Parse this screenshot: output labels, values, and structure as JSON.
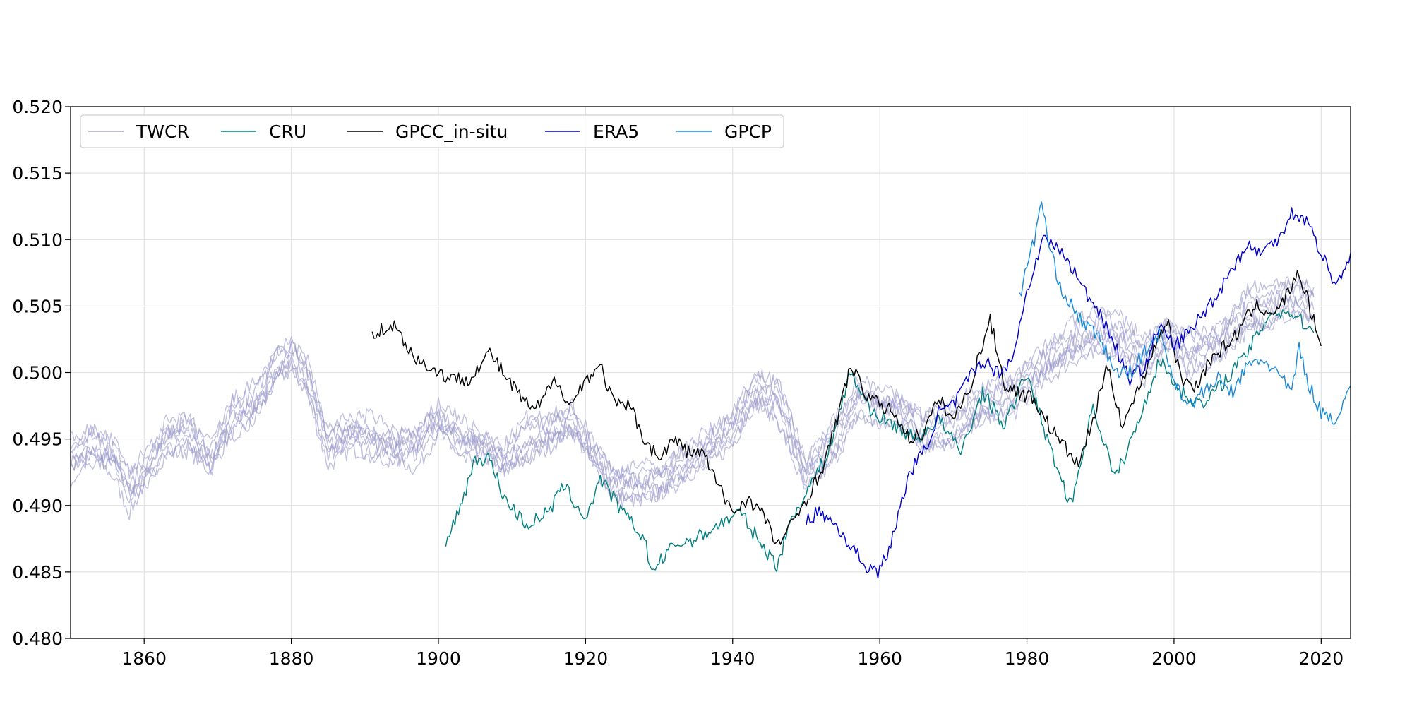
{
  "chart_data": {
    "type": "line",
    "title": "",
    "xlabel": "",
    "ylabel": "",
    "xlim": [
      1850,
      2024
    ],
    "ylim": [
      0.48,
      0.52
    ],
    "xticks": [
      1860,
      1880,
      1900,
      1920,
      1940,
      1960,
      1980,
      2000,
      2020
    ],
    "yticks": [
      0.48,
      0.485,
      0.49,
      0.495,
      0.5,
      0.505,
      0.51,
      0.515,
      0.52
    ],
    "xtick_labels": [
      "1860",
      "1880",
      "1900",
      "1920",
      "1940",
      "1960",
      "1980",
      "2000",
      "2020"
    ],
    "ytick_labels": [
      "0.480",
      "0.485",
      "0.490",
      "0.495",
      "0.500",
      "0.505",
      "0.510",
      "0.515",
      "0.520"
    ],
    "grid": true,
    "legend_position": "top-left",
    "legend": [
      {
        "label": "TWCR",
        "color": "#aaaacc"
      },
      {
        "label": "CRU",
        "color": "#008080"
      },
      {
        "label": "GPCC_in-situ",
        "color": "#000000"
      },
      {
        "label": "ERA5",
        "color": "#0000cc"
      },
      {
        "label": "GPCP",
        "color": "#1a8ad8"
      }
    ],
    "series": [
      {
        "name": "TWCR",
        "color": "#9999cc",
        "opacity": 0.7,
        "ensemble_members": 8,
        "x": [
          1850,
          1853,
          1856,
          1858,
          1860,
          1863,
          1866,
          1869,
          1872,
          1875,
          1878,
          1880,
          1882,
          1885,
          1888,
          1891,
          1894,
          1897,
          1900,
          1903,
          1906,
          1909,
          1912,
          1915,
          1918,
          1921,
          1924,
          1927,
          1930,
          1933,
          1936,
          1940,
          1943,
          1946,
          1950,
          1954,
          1957,
          1960,
          1963,
          1966,
          1970,
          1974,
          1978,
          1982,
          1986,
          1990,
          1993,
          1996,
          1999,
          2002,
          2006,
          2010,
          2013,
          2016,
          2019
        ],
        "y": [
          0.4935,
          0.4945,
          0.4935,
          0.491,
          0.4925,
          0.495,
          0.4955,
          0.4935,
          0.4965,
          0.4975,
          0.5005,
          0.5012,
          0.4995,
          0.4945,
          0.4955,
          0.495,
          0.4945,
          0.4945,
          0.4965,
          0.495,
          0.4945,
          0.4935,
          0.495,
          0.4955,
          0.4965,
          0.494,
          0.4915,
          0.4915,
          0.4915,
          0.493,
          0.494,
          0.496,
          0.4985,
          0.498,
          0.4925,
          0.495,
          0.498,
          0.4975,
          0.497,
          0.4955,
          0.496,
          0.4975,
          0.4985,
          0.5005,
          0.502,
          0.503,
          0.5025,
          0.501,
          0.503,
          0.5015,
          0.5025,
          0.5045,
          0.505,
          0.5055,
          0.505
        ]
      },
      {
        "name": "CRU",
        "color": "#008080",
        "opacity": 1,
        "x": [
          1901,
          1903,
          1905,
          1907,
          1909,
          1912,
          1915,
          1917,
          1920,
          1922,
          1925,
          1928,
          1929,
          1932,
          1935,
          1938,
          1941,
          1944,
          1946,
          1948,
          1950,
          1953,
          1956,
          1959,
          1962,
          1965,
          1968,
          1971,
          1974,
          1977,
          1980,
          1983,
          1986,
          1989,
          1992,
          1995,
          1998,
          2001,
          2004,
          2007,
          2010,
          2013,
          2016,
          2019
        ],
        "y": [
          0.487,
          0.49,
          0.4935,
          0.4935,
          0.4905,
          0.4885,
          0.4895,
          0.4915,
          0.489,
          0.492,
          0.4895,
          0.4875,
          0.485,
          0.487,
          0.4875,
          0.4885,
          0.4895,
          0.487,
          0.4855,
          0.489,
          0.491,
          0.494,
          0.5,
          0.497,
          0.496,
          0.495,
          0.4965,
          0.494,
          0.4985,
          0.496,
          0.5,
          0.4945,
          0.49,
          0.4975,
          0.492,
          0.496,
          0.501,
          0.4985,
          0.4975,
          0.4995,
          0.5015,
          0.5045,
          0.5045,
          0.503
        ]
      },
      {
        "name": "GPCC_in-situ",
        "color": "#000000",
        "opacity": 1,
        "x": [
          1891,
          1894,
          1897,
          1900,
          1902,
          1904,
          1907,
          1910,
          1913,
          1916,
          1918,
          1920,
          1922,
          1924,
          1926,
          1928,
          1930,
          1932,
          1934,
          1936,
          1938,
          1940,
          1942,
          1944,
          1946,
          1948,
          1950,
          1952,
          1954,
          1956,
          1958,
          1960,
          1962,
          1964,
          1966,
          1968,
          1970,
          1972,
          1975,
          1977,
          1979,
          1981,
          1983,
          1985,
          1987,
          1989,
          1991,
          1993,
          1995,
          1997,
          1999,
          2001,
          2003,
          2005,
          2008,
          2011,
          2014,
          2017,
          2020
        ],
        "y": [
          0.503,
          0.5035,
          0.501,
          0.5,
          0.4995,
          0.4995,
          0.5015,
          0.499,
          0.497,
          0.4995,
          0.4975,
          0.4995,
          0.5005,
          0.4975,
          0.4975,
          0.495,
          0.4935,
          0.495,
          0.494,
          0.494,
          0.4915,
          0.4895,
          0.4905,
          0.4895,
          0.487,
          0.4885,
          0.4905,
          0.4925,
          0.496,
          0.5005,
          0.4985,
          0.4975,
          0.497,
          0.495,
          0.4955,
          0.498,
          0.4965,
          0.4985,
          0.504,
          0.499,
          0.4985,
          0.498,
          0.496,
          0.4945,
          0.493,
          0.4965,
          0.5005,
          0.496,
          0.4985,
          0.5015,
          0.504,
          0.4995,
          0.499,
          0.501,
          0.5025,
          0.505,
          0.5045,
          0.5075,
          0.502
        ]
      },
      {
        "name": "ERA5",
        "color": "#0000cc",
        "opacity": 1,
        "x": [
          1950,
          1952,
          1954,
          1956,
          1958,
          1960,
          1962,
          1964,
          1966,
          1968,
          1970,
          1972,
          1974,
          1976,
          1978,
          1980,
          1982,
          1984,
          1986,
          1988,
          1990,
          1992,
          1994,
          1996,
          1998,
          2000,
          2002,
          2004,
          2006,
          2008,
          2010,
          2012,
          2014,
          2016,
          2018,
          2020,
          2022,
          2024
        ],
        "y": [
          0.489,
          0.4895,
          0.4885,
          0.487,
          0.4855,
          0.485,
          0.488,
          0.4925,
          0.494,
          0.497,
          0.4975,
          0.4995,
          0.501,
          0.5,
          0.501,
          0.506,
          0.51,
          0.5095,
          0.508,
          0.506,
          0.5045,
          0.502,
          0.4995,
          0.5005,
          0.5035,
          0.502,
          0.503,
          0.5045,
          0.506,
          0.508,
          0.5095,
          0.509,
          0.51,
          0.512,
          0.5115,
          0.509,
          0.5065,
          0.509
        ]
      },
      {
        "name": "GPCP",
        "color": "#1a8ad8",
        "opacity": 1,
        "x": [
          1979,
          1980,
          1981,
          1982,
          1983,
          1984,
          1985,
          1986,
          1988,
          1990,
          1992,
          1994,
          1996,
          1998,
          2000,
          2002,
          2004,
          2006,
          2008,
          2010,
          2012,
          2014,
          2016,
          2017,
          2018,
          2020,
          2022,
          2024
        ],
        "y": [
          0.5055,
          0.508,
          0.51,
          0.513,
          0.5095,
          0.5075,
          0.506,
          0.505,
          0.5035,
          0.5025,
          0.5,
          0.5,
          0.5015,
          0.503,
          0.4995,
          0.4975,
          0.4985,
          0.4995,
          0.4985,
          0.5005,
          0.501,
          0.5,
          0.4985,
          0.502,
          0.4995,
          0.497,
          0.4965,
          0.499
        ]
      }
    ]
  }
}
